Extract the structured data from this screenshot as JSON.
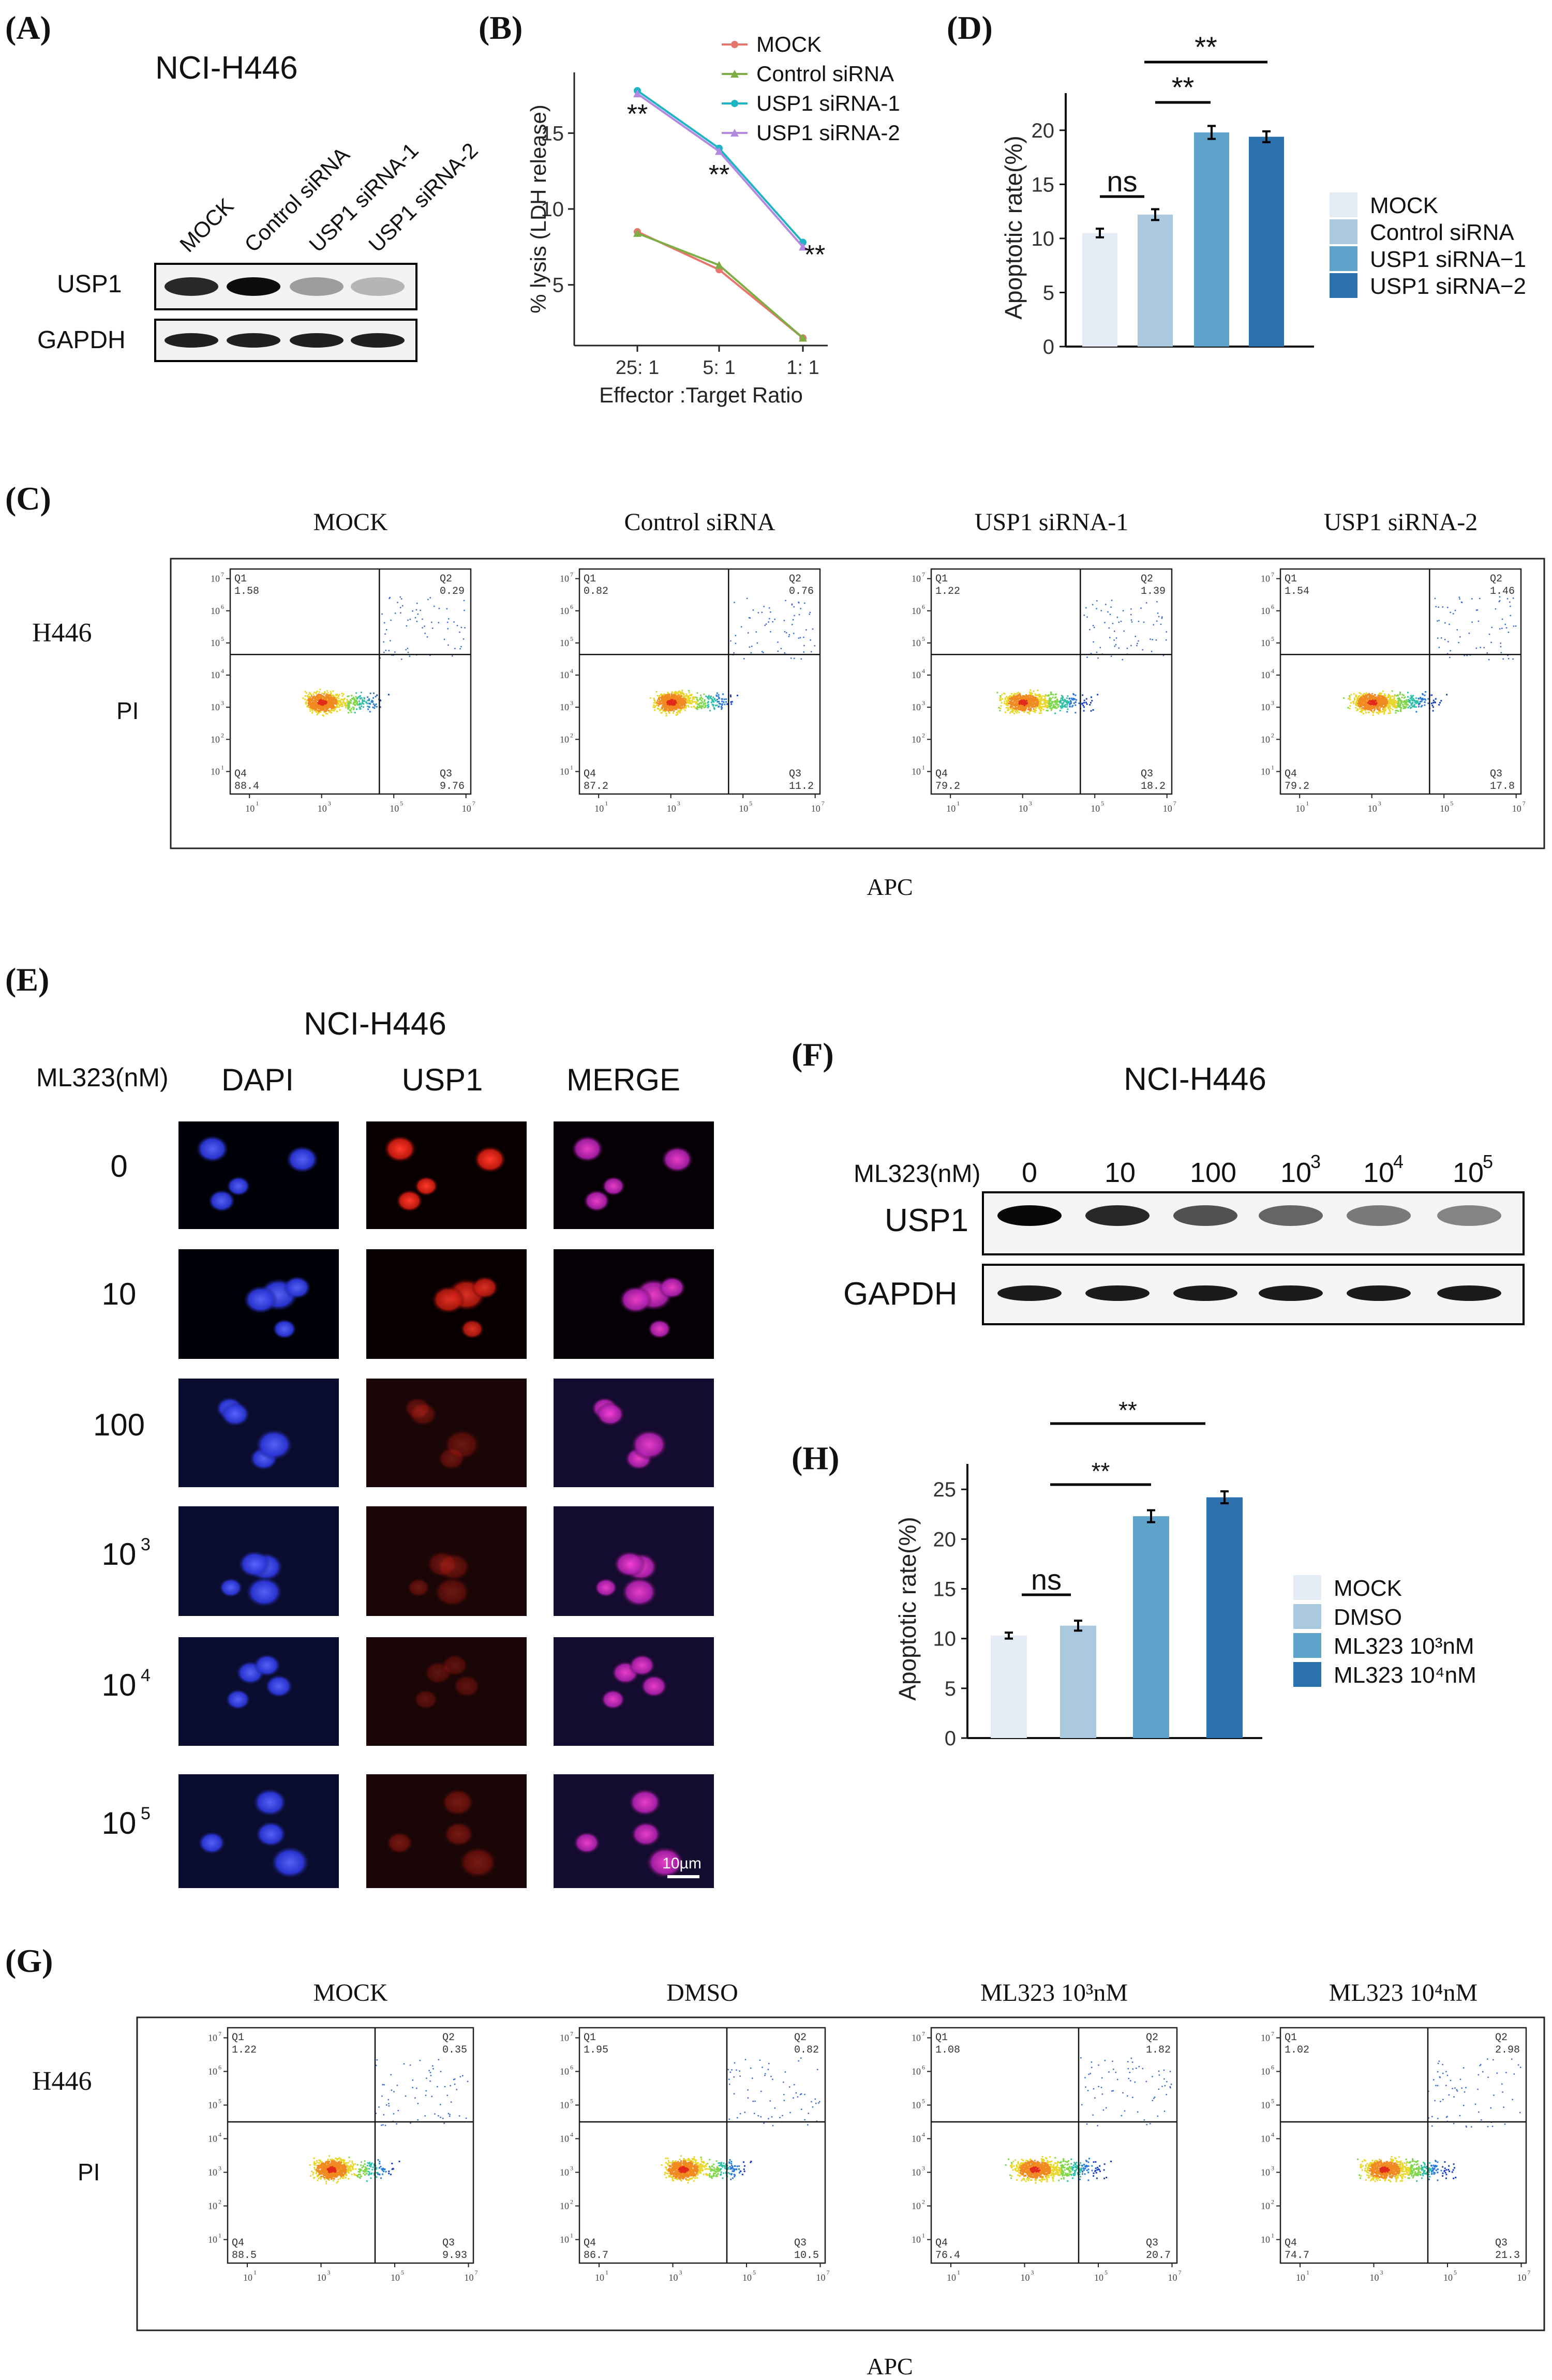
{
  "panels": {
    "A": {
      "tag": "(A)",
      "cell_line": "NCI-H446",
      "lanes": [
        "MOCK",
        "Control siRNA",
        "USP1 siRNA-1",
        "USP1 siRNA-2"
      ],
      "rows": [
        "USP1",
        "GAPDH"
      ],
      "band_intensity": {
        "USP1": [
          0.85,
          1.0,
          0.25,
          0.12
        ],
        "GAPDH": [
          0.9,
          0.9,
          0.9,
          0.9
        ]
      }
    },
    "B": {
      "tag": "(B)",
      "chart_data": {
        "type": "line",
        "categories": [
          "25: 1",
          "5: 1",
          "1: 1"
        ],
        "xlabel": "Effector :Target Ratio",
        "ylabel": "% lysis (LDH release)",
        "yticks": [
          5,
          10,
          15
        ],
        "ylim": [
          1,
          19
        ],
        "series": [
          {
            "name": "MOCK",
            "values": [
              8.5,
              6.0,
              1.5
            ],
            "color": "#e8756b"
          },
          {
            "name": "Control siRNA",
            "values": [
              8.4,
              6.3,
              1.5
            ],
            "color": "#7cae45"
          },
          {
            "name": "USP1 siRNA-1",
            "values": [
              17.8,
              14.0,
              7.8
            ],
            "color": "#1fb3c6"
          },
          {
            "name": "USP1 siRNA-2",
            "values": [
              17.6,
              13.8,
              7.5
            ],
            "color": "#b388e0"
          }
        ],
        "annotations": [
          "**",
          "**",
          "**"
        ],
        "legend": "top-right"
      }
    },
    "C": {
      "tag": "(C)",
      "cell_line": "H446",
      "y_axis": "PI",
      "x_axis": "APC",
      "plots": [
        {
          "title": "MOCK",
          "q1": "1.58",
          "q2": "0.29",
          "q3": "9.76",
          "q4": "88.4"
        },
        {
          "title": "Control siRNA",
          "q1": "0.82",
          "q2": "0.76",
          "q3": "11.2",
          "q4": "87.2"
        },
        {
          "title": "USP1 siRNA-1",
          "q1": "1.22",
          "q2": "1.39",
          "q3": "18.2",
          "q4": "79.2"
        },
        {
          "title": "USP1 siRNA-2",
          "q1": "1.54",
          "q2": "1.46",
          "q3": "17.8",
          "q4": "79.2"
        }
      ]
    },
    "D": {
      "tag": "(D)",
      "chart_data": {
        "type": "bar",
        "categories": [
          "MOCK",
          "Control siRNA",
          "USP1 siRNA−1",
          "USP1 siRNA−2"
        ],
        "values": [
          10.5,
          12.2,
          19.8,
          19.4
        ],
        "errors": [
          0.4,
          0.5,
          0.6,
          0.5
        ],
        "colors": [
          "#e4ecf6",
          "#aac9de",
          "#5fa3cb",
          "#2a71ae"
        ],
        "ylabel": "Apoptotic rate(%)",
        "yticks": [
          0,
          5,
          10,
          15,
          20
        ],
        "ylim": [
          0,
          22
        ],
        "significance": [
          {
            "label": "ns"
          },
          {
            "label": "**"
          },
          {
            "label": "**"
          }
        ],
        "legend": "right"
      }
    },
    "E": {
      "tag": "(E)",
      "cell_line": "NCI-H446",
      "row_header": "ML323(nM)",
      "columns": [
        "DAPI",
        "USP1",
        "MERGE"
      ],
      "rows": [
        {
          "base": "0",
          "exp": ""
        },
        {
          "base": "10",
          "exp": ""
        },
        {
          "base": "100",
          "exp": ""
        },
        {
          "base": "10",
          "exp": "3"
        },
        {
          "base": "10",
          "exp": "4"
        },
        {
          "base": "10",
          "exp": "5"
        }
      ],
      "red_intensity": [
        1.0,
        0.85,
        0.35,
        0.35,
        0.3,
        0.4
      ],
      "scale_bar": "10µm"
    },
    "F": {
      "tag": "(F)",
      "cell_line": "NCI-H446",
      "row_header": "ML323(nM)",
      "doses": [
        {
          "base": "0",
          "exp": ""
        },
        {
          "base": "10",
          "exp": ""
        },
        {
          "base": "100",
          "exp": ""
        },
        {
          "base": "10",
          "exp": "3"
        },
        {
          "base": "10",
          "exp": "4"
        },
        {
          "base": "10",
          "exp": "5"
        }
      ],
      "rows": [
        "USP1",
        "GAPDH"
      ],
      "band_intensity": {
        "USP1": [
          1.0,
          0.85,
          0.65,
          0.55,
          0.45,
          0.4
        ],
        "GAPDH": [
          0.9,
          0.9,
          0.9,
          0.9,
          0.9,
          0.9
        ]
      }
    },
    "G": {
      "tag": "(G)",
      "cell_line": "H446",
      "y_axis": "PI",
      "x_axis": "APC",
      "plots": [
        {
          "title": "MOCK",
          "q1": "1.22",
          "q2": "0.35",
          "q3": "9.93",
          "q4": "88.5"
        },
        {
          "title": "DMSO",
          "q1": "1.95",
          "q2": "0.82",
          "q3": "10.5",
          "q4": "86.7"
        },
        {
          "title": "ML323 10³nM",
          "q1": "1.08",
          "q2": "1.82",
          "q3": "20.7",
          "q4": "76.4"
        },
        {
          "title": "ML323 10⁴nM",
          "q1": "1.02",
          "q2": "2.98",
          "q3": "21.3",
          "q4": "74.7"
        }
      ]
    },
    "H": {
      "tag": "(H)",
      "chart_data": {
        "type": "bar",
        "categories": [
          "MOCK",
          "DMSO",
          "ML323 10³nM",
          "ML323 10⁴nM"
        ],
        "values": [
          10.3,
          11.3,
          22.3,
          24.2
        ],
        "errors": [
          0.3,
          0.5,
          0.6,
          0.6
        ],
        "colors": [
          "#e4ecf6",
          "#aac9de",
          "#5fa3cb",
          "#2a71ae"
        ],
        "ylabel": "Apoptotic rate(%)",
        "yticks": [
          0,
          5,
          10,
          15,
          20,
          25
        ],
        "ylim": [
          0,
          26
        ],
        "significance": [
          {
            "label": "ns"
          },
          {
            "label": "**"
          },
          {
            "label": "**"
          }
        ],
        "legend": "right"
      }
    }
  }
}
